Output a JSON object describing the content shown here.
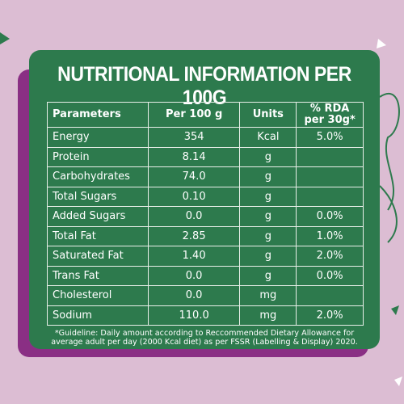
{
  "header": {
    "title": "NUTRITIONAL INFORMATION PER 100G"
  },
  "table": {
    "columns": [
      "Parameters",
      "Per 100 g",
      "Units",
      "% RDA per 30g*"
    ],
    "rows": [
      [
        "Energy",
        "354",
        "Kcal",
        "5.0%"
      ],
      [
        "Protein",
        "8.14",
        "g",
        null
      ],
      [
        "Carbohydrates",
        "74.0",
        "g",
        null
      ],
      [
        "Total Sugars",
        "0.10",
        "g",
        null
      ],
      [
        "Added Sugars",
        "0.0",
        "g",
        "0.0%"
      ],
      [
        "Total Fat",
        "2.85",
        "g",
        "1.0%"
      ],
      [
        "Saturated Fat",
        "1.40",
        "g",
        "2.0%"
      ],
      [
        "Trans Fat",
        "0.0",
        "g",
        "0.0%"
      ],
      [
        "Cholesterol",
        "0.0",
        "mg",
        null
      ],
      [
        "Sodium",
        "110.0",
        "mg",
        "2.0%"
      ]
    ]
  },
  "footnote": "*Guideline: Daily amount according to Reccommended Dietary Allowance for average adult per day (2000 Kcal diet) as per FSSR (Labelling & Display) 2020."
}
